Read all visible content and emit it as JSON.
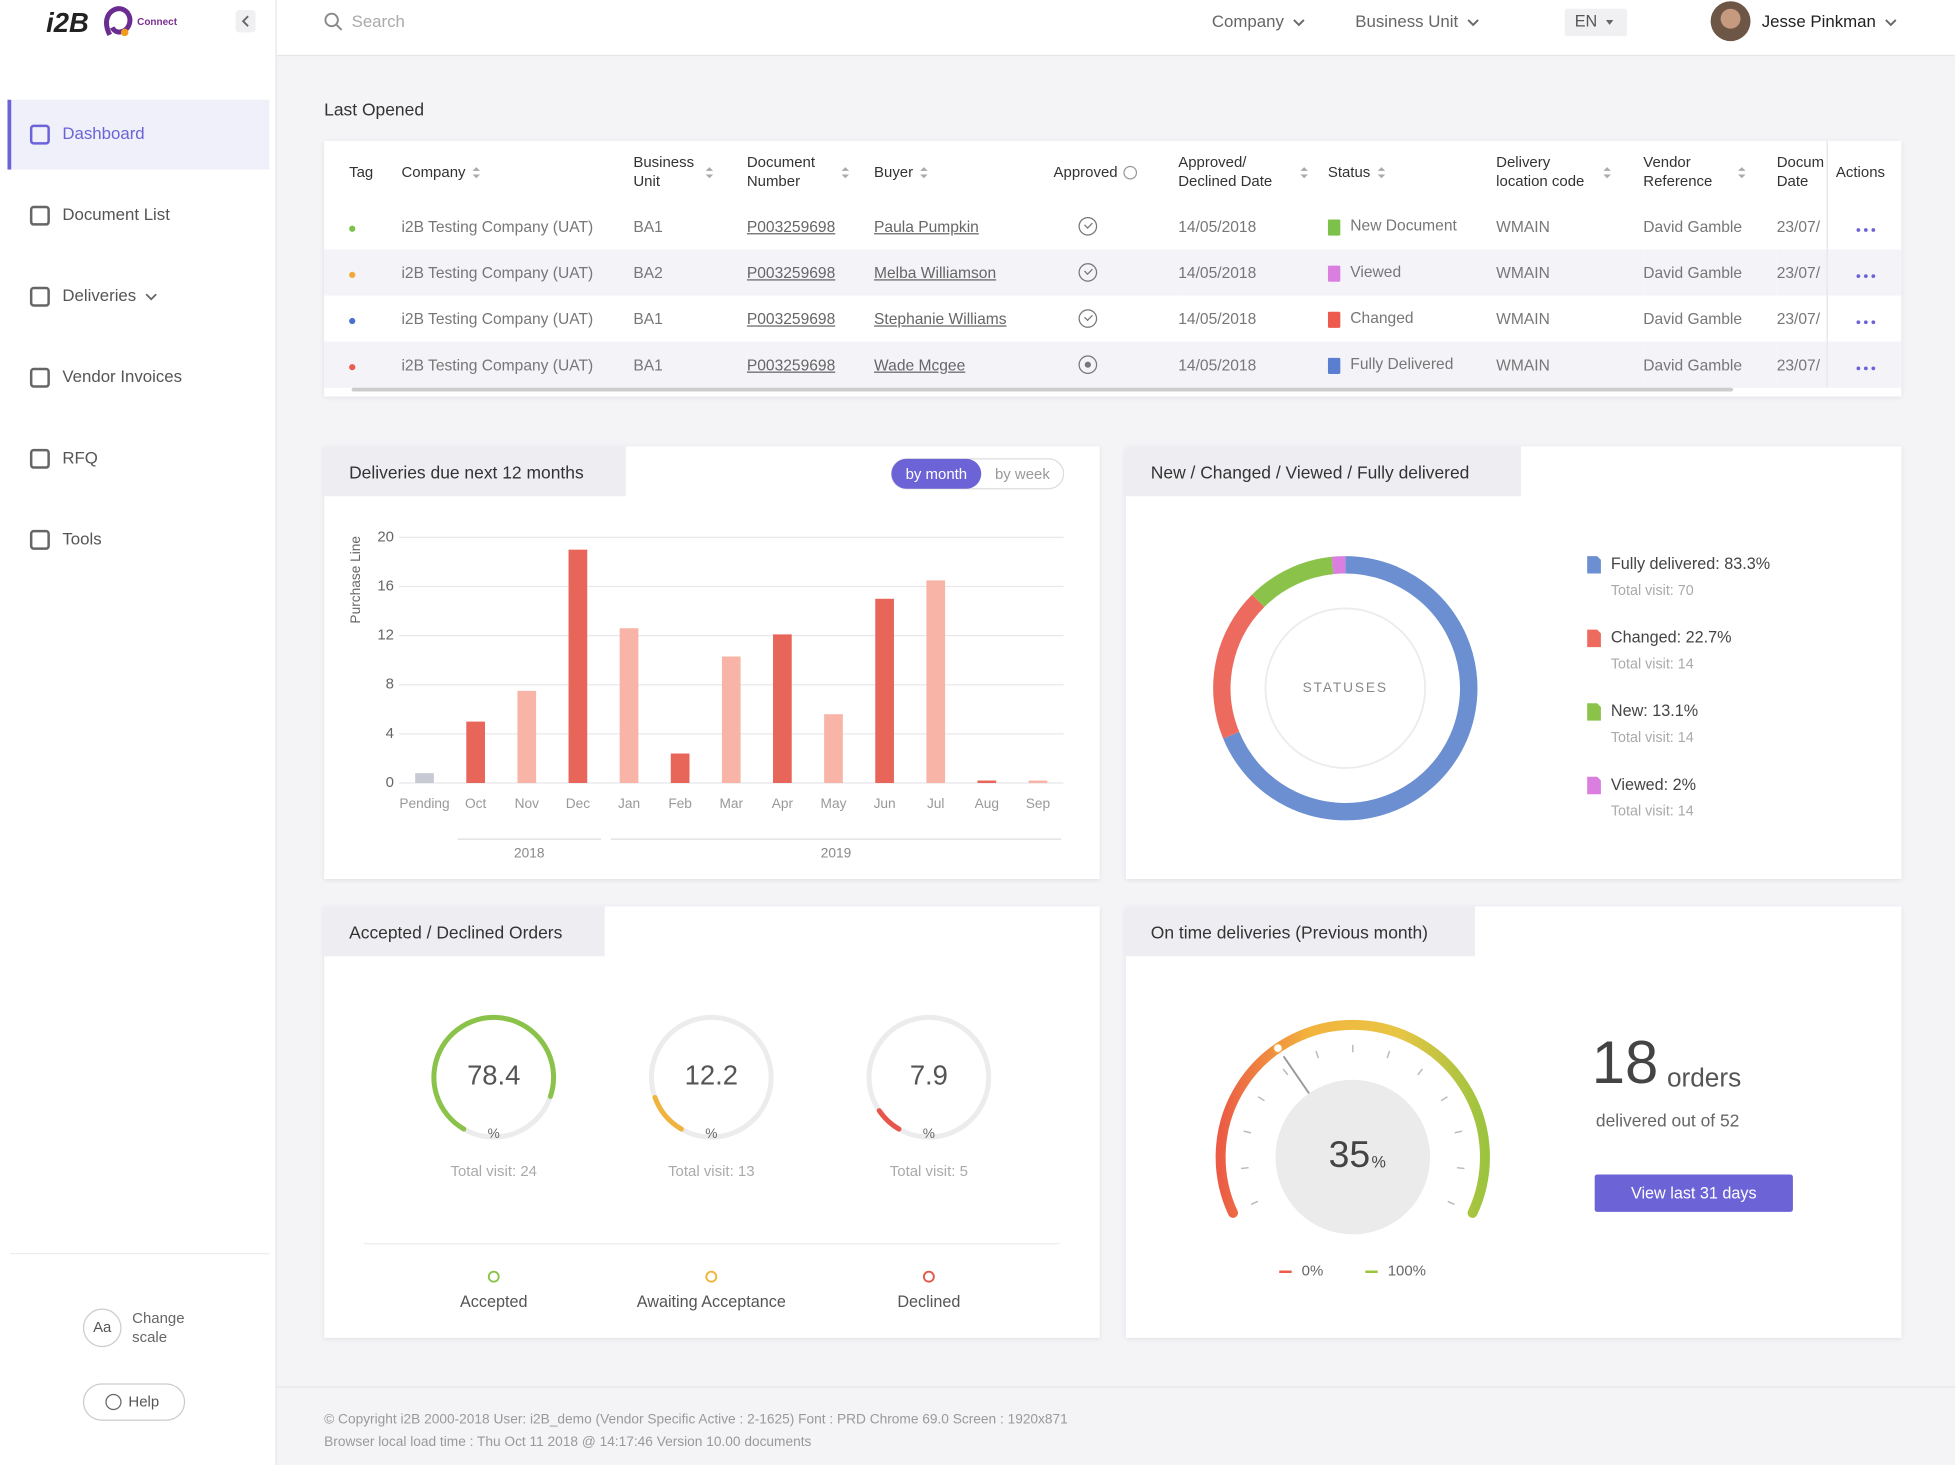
{
  "header": {
    "logo": "i2B",
    "logo_sub": "Connect",
    "search": "Search",
    "menus": [
      "Company",
      "Business Unit"
    ],
    "language": "EN",
    "user": "Jesse Pinkman"
  },
  "sidebar": {
    "items": [
      "Dashboard",
      "Document List",
      "Deliveries",
      "Vendor Invoices",
      "RFQ",
      "Tools"
    ],
    "active": 0,
    "scale_icon": "Aa",
    "scale_label": "Change scale",
    "help": "Help"
  },
  "table": {
    "title": "Last Opened",
    "columns": [
      "Tag",
      "Company",
      "Business Unit",
      "Document Number",
      "Buyer",
      "Approved",
      "Approved/ Declined Date",
      "Status",
      "Delivery location code",
      "Vendor Reference",
      "Docum Date",
      "Actions"
    ],
    "rows": [
      {
        "tag_color": "#7cc14a",
        "cells": [
          "i2B Testing Company (UAT)",
          "BA1",
          "P003259698",
          "Paula Pumpkin",
          "14/05/2018",
          "New Document",
          "WMAIN",
          "David Gamble",
          "23/07/"
        ],
        "approved": true,
        "status_color": "#7cc14a"
      },
      {
        "tag_color": "#f2a93b",
        "cells": [
          "i2B Testing Company (UAT)",
          "BA2",
          "P003259698",
          "Melba Williamson",
          "14/05/2018",
          "Viewed",
          "WMAIN",
          "David Gamble",
          "23/07/"
        ],
        "approved": true,
        "status_color": "#d97fe0"
      },
      {
        "tag_color": "#4a6fd0",
        "cells": [
          "i2B Testing Company (UAT)",
          "BA1",
          "P003259698",
          "Stephanie Williams",
          "14/05/2018",
          "Changed",
          "WMAIN",
          "David Gamble",
          "23/07/"
        ],
        "approved": true,
        "status_color": "#ec5b4d"
      },
      {
        "tag_color": "#ec5b4d",
        "cells": [
          "i2B Testing Company (UAT)",
          "BA1",
          "P003259698",
          "Wade Mcgee",
          "14/05/2018",
          "Fully Delivered",
          "WMAIN",
          "David Gamble",
          "23/07/"
        ],
        "approved": false,
        "status_color": "#5b7fd0"
      }
    ]
  },
  "chart_data": [
    {
      "type": "bar",
      "title": "Deliveries due next 12 months",
      "toggle": [
        "by month",
        "by week"
      ],
      "toggle_active": 0,
      "y_label": "Purchase Line",
      "categories": [
        "Pending",
        "Oct",
        "Nov",
        "Dec",
        "Jan",
        "Feb",
        "Mar",
        "Apr",
        "May",
        "Jun",
        "Jul",
        "Aug",
        "Sep"
      ],
      "values": [
        0.8,
        5,
        7.5,
        19,
        12.6,
        2.4,
        10.3,
        12.1,
        5.6,
        15,
        16.5,
        0.2,
        0.2
      ],
      "colors": [
        "#c7c9d3",
        "#e8655a",
        "#f8b4a6",
        "#e8655a",
        "#f8b4a6",
        "#e8655a",
        "#f8b4a6",
        "#e8655a",
        "#f8b4a6",
        "#e8655a",
        "#f8b4a6",
        "#e8655a",
        "#f8b4a6"
      ],
      "ylim": [
        0,
        20
      ],
      "yticks": [
        0,
        4,
        8,
        12,
        16,
        20
      ],
      "grid": true,
      "groups": [
        {
          "label": "2018",
          "start": 1,
          "end": 3
        },
        {
          "label": "2019",
          "start": 4,
          "end": 12
        }
      ]
    },
    {
      "type": "pie",
      "title": "New / Changed / Viewed / Fully delivered",
      "center_label": "STATUSES",
      "values": [
        83.3,
        22.7,
        13.1,
        2
      ],
      "value_labels": [
        "Fully delivered: 83.3%",
        "Changed: 22.7%",
        "New: 13.1%",
        "Viewed: 2%"
      ],
      "subtexts": [
        "Total visit: 70",
        "Total visit: 14",
        "Total visit: 14",
        "Total visit: 14"
      ],
      "colors": [
        "#6b8fd0",
        "#ec6b5e",
        "#8bc34a",
        "#da7ee0"
      ]
    },
    {
      "type": "gauge",
      "title": "Accepted / Declined Orders",
      "unit": "%",
      "ylim": [
        0,
        100
      ],
      "categories": [
        "Accepted",
        "Awaiting Acceptance",
        "Declined"
      ],
      "values": [
        78.4,
        12.2,
        7.9
      ],
      "subtexts": [
        "Total visit: 24",
        "Total visit: 13",
        "Total visit: 5"
      ],
      "colors": [
        "#8bc34a",
        "#f0b43c",
        "#e8554a"
      ]
    },
    {
      "type": "speedometer",
      "title": "On time deliveries (Previous month)",
      "value": 35,
      "unit": "%",
      "ylim": [
        0,
        100
      ],
      "yticks": [
        {
          "value": 0,
          "label": "0%"
        },
        {
          "value": 100,
          "label": "100%"
        }
      ],
      "gradient": [
        "#ec5b45",
        "#f2b33d",
        "#e9c544",
        "#9cc43f"
      ],
      "orders": 18,
      "orders_label": "orders",
      "orders_text": "delivered out of 52",
      "button": "View last 31 days"
    }
  ],
  "footer": [
    "© Copyright i2B 2000-2018 User: i2B_demo  (Vendor Specific Active : 2-1625)  Font :  PRD Chrome 69.0  Screen : 1920x871",
    "Browser local load time : Thu Oct 11 2018 @ 14:17:46  Version 10.00 documents"
  ]
}
